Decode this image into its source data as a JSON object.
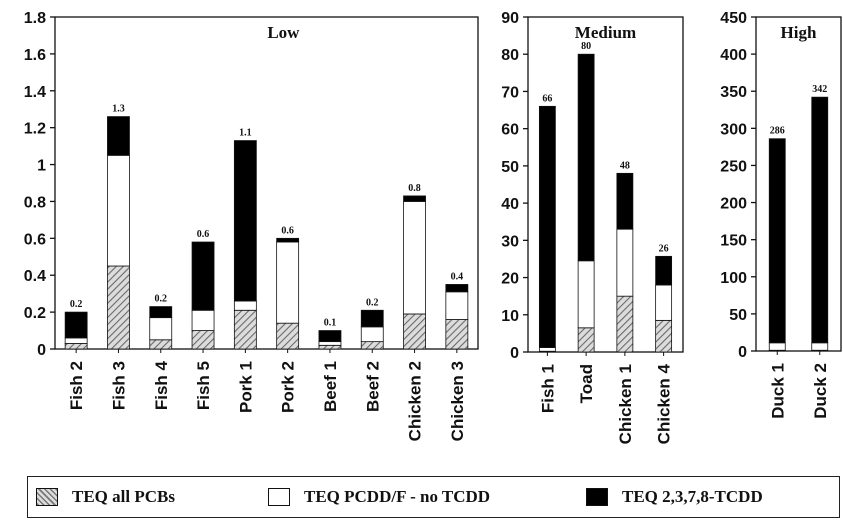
{
  "chart_data": {
    "type": "bar",
    "stacked": true,
    "legend_position": "bottom",
    "series_names": [
      "TEQ all PCBs",
      "TEQ PCDD/F - no TCDD",
      "TEQ 2,3,7,8-TCDD"
    ],
    "series_fills": [
      "hatched-gray",
      "#ffffff",
      "#000000"
    ],
    "panels": [
      {
        "title": "Low",
        "ylim": [
          0,
          1.8
        ],
        "yticks": [
          "0",
          "0.2",
          "0.4",
          "0.6",
          "0.8",
          "1",
          "1.2",
          "1.4",
          "1.6",
          "1.8"
        ],
        "categories": [
          "Fish 2",
          "Fish 3",
          "Fish 4",
          "Fish 5",
          "Pork 1",
          "Pork 2",
          "Beef 1",
          "Beef 2",
          "Chicken 2",
          "Chicken 3"
        ],
        "totals_labels": [
          "0.2",
          "1.3",
          "0.2",
          "0.6",
          "1.1",
          "0.6",
          "0.1",
          "0.2",
          "0.8",
          "0.4"
        ],
        "series": [
          {
            "name": "TEQ all PCBs",
            "values": [
              0.03,
              0.45,
              0.05,
              0.1,
              0.21,
              0.14,
              0.02,
              0.04,
              0.19,
              0.16
            ]
          },
          {
            "name": "TEQ PCDD/F - no TCDD",
            "values": [
              0.03,
              0.6,
              0.12,
              0.11,
              0.05,
              0.44,
              0.02,
              0.08,
              0.61,
              0.15
            ]
          },
          {
            "name": "TEQ 2,3,7,8-TCDD",
            "values": [
              0.14,
              0.21,
              0.06,
              0.37,
              0.87,
              0.02,
              0.06,
              0.09,
              0.03,
              0.04
            ]
          }
        ]
      },
      {
        "title": "Medium",
        "ylim": [
          0,
          90
        ],
        "yticks": [
          "0",
          "10",
          "20",
          "30",
          "40",
          "50",
          "60",
          "70",
          "80",
          "90"
        ],
        "categories": [
          "Fish 1",
          "Toad",
          "Chicken 1",
          "Chicken 4"
        ],
        "totals_labels": [
          "66",
          "80",
          "48",
          "26"
        ],
        "series": [
          {
            "name": "TEQ all PCBs",
            "values": [
              0.2,
              6.5,
              15,
              8.5
            ]
          },
          {
            "name": "TEQ PCDD/F - no TCDD",
            "values": [
              1,
              18,
              18,
              9.5
            ]
          },
          {
            "name": "TEQ 2,3,7,8-TCDD",
            "values": [
              64.8,
              55.5,
              15,
              7.7
            ]
          }
        ]
      },
      {
        "title": "High",
        "ylim": [
          0,
          450
        ],
        "yticks": [
          "0",
          "50",
          "100",
          "150",
          "200",
          "250",
          "300",
          "350",
          "400",
          "450"
        ],
        "categories": [
          "Duck 1",
          "Duck 2"
        ],
        "totals_labels": [
          "286",
          "342"
        ],
        "series": [
          {
            "name": "TEQ all PCBs",
            "values": [
              1,
              1
            ]
          },
          {
            "name": "TEQ PCDD/F - no TCDD",
            "values": [
              10,
              10
            ]
          },
          {
            "name": "TEQ 2,3,7,8-TCDD",
            "values": [
              275,
              331
            ]
          }
        ]
      }
    ]
  },
  "legend": {
    "pcb_label": "TEQ all PCBs",
    "pcdd_label": "TEQ PCDD/F - no TCDD",
    "tcdd_label": "TEQ 2,3,7,8-TCDD"
  }
}
